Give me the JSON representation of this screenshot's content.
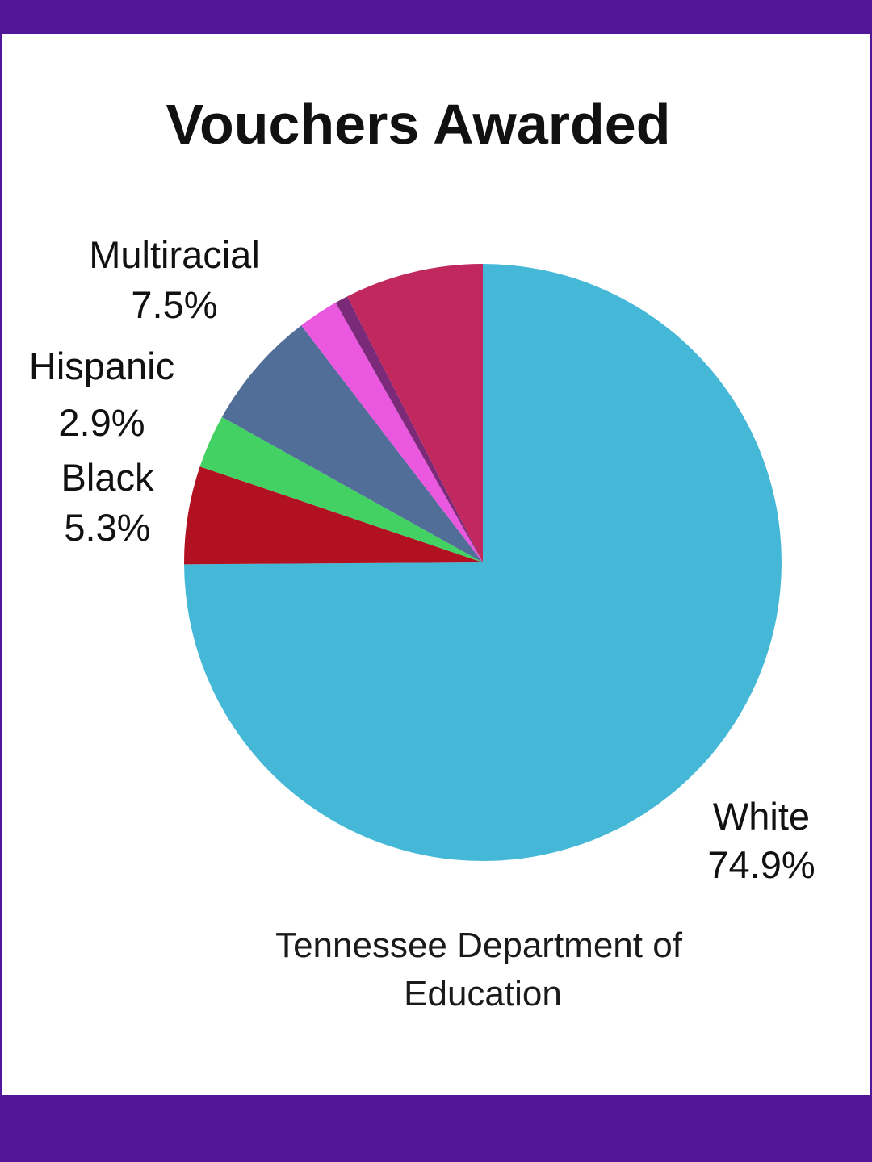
{
  "colors": {
    "frame": "#52169a",
    "background": "#ffffff"
  },
  "source": {
    "line1": "Tennessee Department of",
    "line2": "Education"
  },
  "chart_data": {
    "type": "pie",
    "title": "Vouchers Awarded",
    "slices": [
      {
        "name": "White",
        "value": 74.9,
        "label": "White",
        "pct_label": "74.9%",
        "color": "#45b8d7",
        "labeled": true
      },
      {
        "name": "Black",
        "value": 5.3,
        "label": "Black",
        "pct_label": "5.3%",
        "color": "#b11121",
        "labeled": true
      },
      {
        "name": "Hispanic",
        "value": 2.9,
        "label": "Hispanic",
        "pct_label": "2.9%",
        "color": "#43d163",
        "labeled": true
      },
      {
        "name": "Unlabeled slate",
        "value": 6.5,
        "color": "#506e98",
        "labeled": false
      },
      {
        "name": "Unlabeled magenta",
        "value": 2.2,
        "color": "#ea58e0",
        "labeled": false
      },
      {
        "name": "Unlabeled purple",
        "value": 0.7,
        "color": "#7a2a78",
        "labeled": false
      },
      {
        "name": "Multiracial",
        "value": 7.5,
        "label": "Multiracial",
        "pct_label": "7.5%",
        "color": "#c0285e",
        "labeled": true
      }
    ]
  }
}
